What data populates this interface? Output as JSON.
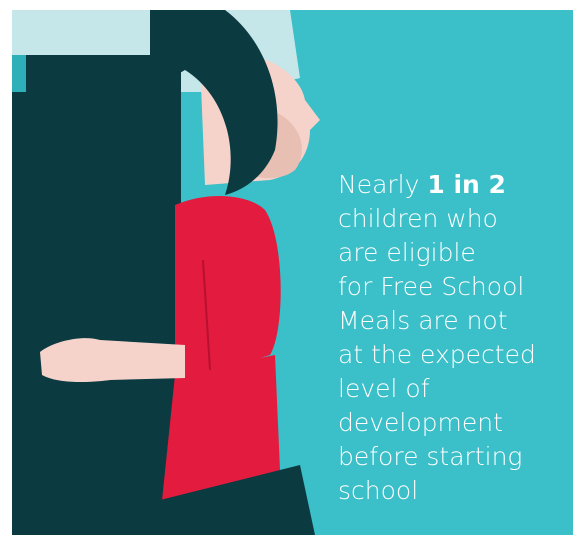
{
  "text": {
    "lead": "Nearly",
    "highlight": "1 in 2",
    "lines": [
      "children who",
      "are eligible",
      "for Free School",
      "Meals are not",
      "at the expected",
      "level of",
      "development",
      "before starting",
      "school"
    ]
  }
}
